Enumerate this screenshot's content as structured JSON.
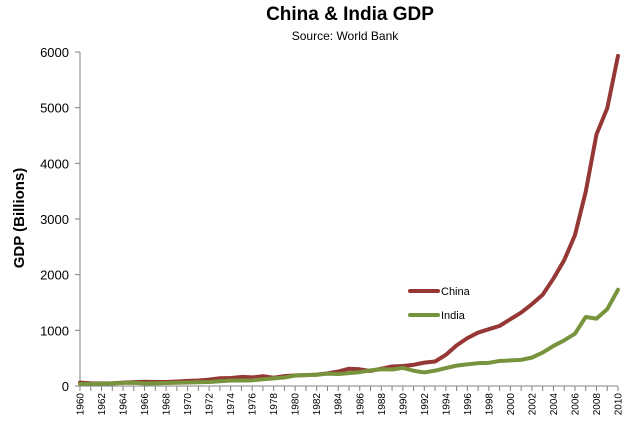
{
  "chart_data": {
    "type": "line",
    "title": "China & India GDP",
    "subtitle": "Source: World Bank",
    "xlabel": "",
    "ylabel": "GDP (Billions)",
    "ylim": [
      0,
      6000
    ],
    "yticks": [
      0,
      1000,
      2000,
      3000,
      4000,
      5000,
      6000
    ],
    "x": [
      1960,
      1961,
      1962,
      1963,
      1964,
      1965,
      1966,
      1967,
      1968,
      1969,
      1970,
      1971,
      1972,
      1973,
      1974,
      1975,
      1976,
      1977,
      1978,
      1979,
      1980,
      1981,
      1982,
      1983,
      1984,
      1985,
      1986,
      1987,
      1988,
      1989,
      1990,
      1991,
      1992,
      1993,
      1994,
      1995,
      1996,
      1997,
      1998,
      1999,
      2000,
      2001,
      2002,
      2003,
      2004,
      2005,
      2006,
      2007,
      2008,
      2009,
      2010
    ],
    "xticks": [
      "1960",
      "1962",
      "1964",
      "1966",
      "1968",
      "1970",
      "1972",
      "1974",
      "1976",
      "1978",
      "1980",
      "1982",
      "1984",
      "1986",
      "1988",
      "1990",
      "1992",
      "1994",
      "1996",
      "1998",
      "2000",
      "2002",
      "2004",
      "2006",
      "2008",
      "2010"
    ],
    "grid": false,
    "legend_position": "center-right",
    "series": [
      {
        "name": "China",
        "color": "#953735",
        "values": [
          60,
          50,
          47,
          50,
          60,
          70,
          77,
          73,
          71,
          80,
          92,
          99,
          114,
          139,
          144,
          163,
          154,
          175,
          148,
          177,
          190,
          196,
          204,
          228,
          260,
          310,
          300,
          270,
          310,
          350,
          360,
          380,
          420,
          440,
          560,
          730,
          860,
          960,
          1020,
          1080,
          1200,
          1320,
          1470,
          1640,
          1930,
          2260,
          2710,
          3490,
          4520,
          4990,
          5930
        ]
      },
      {
        "name": "India",
        "color": "#77933c",
        "values": [
          37,
          39,
          42,
          48,
          56,
          59,
          46,
          50,
          53,
          58,
          63,
          67,
          71,
          85,
          99,
          98,
          102,
          121,
          137,
          152,
          189,
          196,
          203,
          222,
          215,
          232,
          250,
          280,
          300,
          296,
          326,
          274,
          244,
          276,
          323,
          366,
          388,
          410,
          416,
          450,
          460,
          470,
          510,
          600,
          720,
          820,
          940,
          1240,
          1210,
          1380,
          1730
        ]
      }
    ]
  }
}
